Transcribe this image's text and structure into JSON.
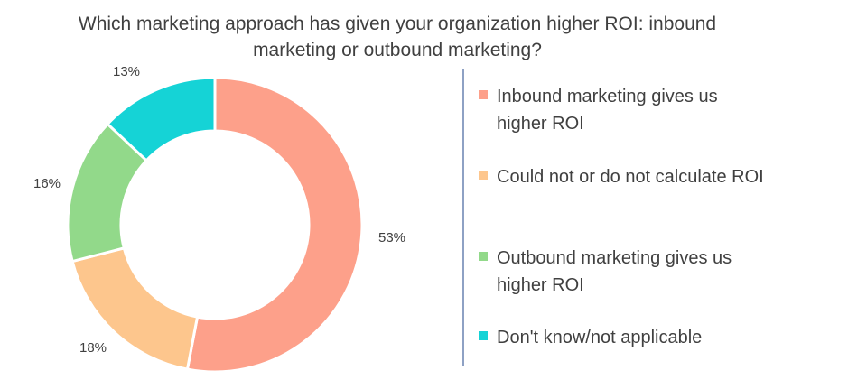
{
  "chart_data": {
    "type": "pie",
    "donut": true,
    "title_lines": [
      "Which marketing approach has given your organization higher ROI: inbound",
      "marketing or outbound marketing?"
    ],
    "slices": [
      {
        "label_lines": [
          "Inbound marketing gives us",
          "higher ROI"
        ],
        "value": 53,
        "value_label": "53%",
        "color": "#fda08a"
      },
      {
        "label_lines": [
          "Could not or do not calculate ROI"
        ],
        "value": 18,
        "value_label": "18%",
        "color": "#fdc68d"
      },
      {
        "label_lines": [
          "Outbound marketing gives us",
          "higher ROI"
        ],
        "value": 16,
        "value_label": "16%",
        "color": "#92d98a"
      },
      {
        "label_lines": [
          "Don't know/not applicable"
        ],
        "value": 13,
        "value_label": "13%",
        "color": "#15d3d6"
      }
    ],
    "legend_position": "right",
    "colors": {
      "divider": "#8ea1c4",
      "text": "#404040"
    }
  }
}
